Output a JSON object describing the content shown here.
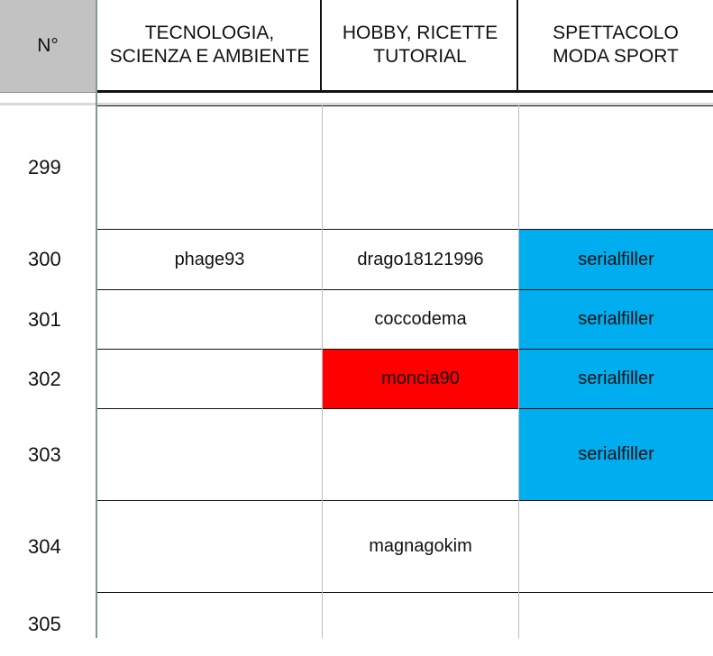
{
  "header": {
    "number_label": "N°",
    "columns": [
      "TECNOLOGIA,\nSCIENZA E AMBIENTE",
      "HOBBY, RICETTE\nTUTORIAL",
      "SPETTACOLO\nMODA SPORT"
    ]
  },
  "colors": {
    "blue_fill": "#00adef",
    "red_fill": "#ff0000",
    "header_gray": "#c2c2c2"
  },
  "rows": [
    {
      "num": "299",
      "c1": "",
      "c2": "",
      "c3": ""
    },
    {
      "num": "300",
      "c1": "phage93",
      "c2": "drago18121996",
      "c3": "serialfiller"
    },
    {
      "num": "301",
      "c1": "",
      "c2": "coccodema",
      "c3": "serialfiller"
    },
    {
      "num": "302",
      "c1": "",
      "c2": "moncia90",
      "c3": "serialfiller"
    },
    {
      "num": "303",
      "c1": "",
      "c2": "",
      "c3": "serialfiller"
    },
    {
      "num": "304",
      "c1": "",
      "c2": "magnagokim",
      "c3": ""
    },
    {
      "num": "305",
      "c1": "",
      "c2": "",
      "c3": ""
    }
  ]
}
